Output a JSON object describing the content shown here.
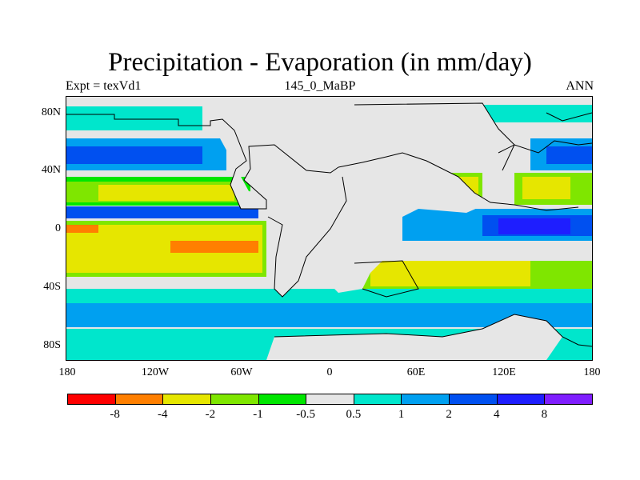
{
  "title": "Precipitation - Evaporation (in mm/day)",
  "subtitle_left": "Expt = texVd1",
  "subtitle_center": "145_0_MaBP",
  "subtitle_right": "ANN",
  "y_axis_ticks": [
    "80N",
    "40N",
    "0",
    "40S",
    "80S"
  ],
  "x_axis_ticks": [
    "180",
    "120W",
    "60W",
    "0",
    "60E",
    "120E",
    "180"
  ],
  "colorbar": {
    "colors": [
      "#ff0000",
      "#ff7f00",
      "#e6e600",
      "#7fe600",
      "#00e600",
      "#e6e6e6",
      "#00e6cc",
      "#00a0f0",
      "#0050f0",
      "#1e1eff",
      "#7f1eff"
    ],
    "labels": [
      "-8",
      "-4",
      "-2",
      "-1",
      "-0.5",
      "0.5",
      "1",
      "2",
      "4",
      "8"
    ]
  }
}
